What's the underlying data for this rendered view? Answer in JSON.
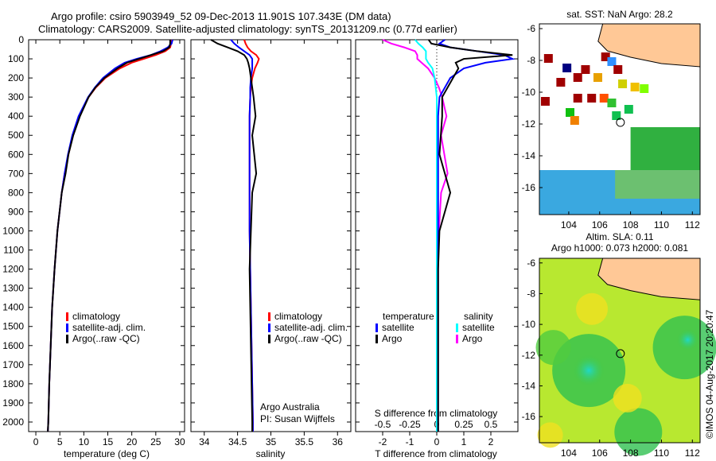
{
  "title_line1": "Argo profile: csiro 5903949_52 09-Dec-2013 11.901S 107.343E (DM data)",
  "title_line2": "Climatology: CARS2009. Satellite-adjusted climatology: synTS_20131209.nc (0.77d earlier)",
  "credits": {
    "org": "Argo Australia",
    "pi": "PI: Susan Wijffels",
    "stamp": "©IMOS 04-Aug-2017 20:20:47"
  },
  "colors": {
    "clim": "#ff0000",
    "sat": "#0000ff",
    "argo": "#000000",
    "s_sat": "#00ffff",
    "s_argo": "#ff00ff",
    "land": "#ffc896"
  },
  "chart_data": [
    {
      "type": "line",
      "name": "temperature",
      "xlabel": "temperature (deg C)",
      "xlim": [
        -1.5,
        31
      ],
      "xticks": [
        "0",
        "5",
        "10",
        "15",
        "20",
        "25",
        "30"
      ],
      "xtickvals": [
        0,
        5,
        10,
        15,
        20,
        25,
        30
      ],
      "ylim": [
        0,
        2050
      ],
      "yticks": [
        "0",
        "100",
        "200",
        "300",
        "400",
        "500",
        "600",
        "700",
        "800",
        "900",
        "1000",
        "1100",
        "1200",
        "1300",
        "1400",
        "1500",
        "1600",
        "1700",
        "1800",
        "1900",
        "2000"
      ],
      "pressure": [
        0,
        20,
        40,
        60,
        80,
        100,
        120,
        150,
        200,
        250,
        300,
        400,
        500,
        600,
        700,
        800,
        1000,
        1200,
        1400,
        1600,
        1800,
        2000,
        2050
      ],
      "legend": [
        "climatology",
        "satellite-adj. clim.",
        "Argo(..raw -QC)"
      ],
      "series": [
        {
          "name": "climatology",
          "values": [
            28.2,
            28.2,
            28,
            27,
            25,
            22.5,
            20,
            17.5,
            14.5,
            12.5,
            11,
            9,
            7.7,
            6.8,
            6,
            5.4,
            4.5,
            3.9,
            3.4,
            3.1,
            2.8,
            2.6,
            2.5
          ]
        },
        {
          "name": "satellite-adj. clim.",
          "values": [
            28.5,
            28.3,
            27.5,
            26,
            24,
            21,
            18.5,
            16.5,
            14,
            12.3,
            10.9,
            8.9,
            7.6,
            6.7,
            6,
            5.4,
            4.5,
            3.9,
            3.4,
            3.1,
            2.8,
            2.6,
            2.5
          ]
        },
        {
          "name": "Argo(..raw -QC)",
          "values": [
            28,
            28,
            27.8,
            26.5,
            24,
            21.5,
            19,
            17,
            14.3,
            12.4,
            11,
            9.2,
            7.8,
            6.8,
            6.2,
            5.4,
            4.5,
            3.9,
            3.4,
            3.1,
            2.8,
            2.6,
            2.5
          ]
        }
      ]
    },
    {
      "type": "line",
      "name": "salinity",
      "xlabel": "salinity",
      "xlim": [
        33.8,
        36.2
      ],
      "xticks": [
        "34",
        "34.5",
        "35",
        "35.5",
        "36"
      ],
      "xtickvals": [
        34,
        34.5,
        35,
        35.5,
        36
      ],
      "legend": [
        "climatology",
        "satellite-adj. clim.",
        "Argo(..raw -QC)"
      ],
      "series": [
        {
          "name": "climatology",
          "values": [
            34.6,
            34.62,
            34.65,
            34.7,
            34.78,
            34.82,
            34.8,
            34.76,
            34.72,
            34.7,
            34.69,
            34.68,
            34.68,
            34.68,
            34.68,
            34.68,
            34.68,
            34.69,
            34.7,
            34.71,
            34.72,
            34.73,
            34.73
          ]
        },
        {
          "name": "satellite-adj. clim.",
          "values": [
            34.4,
            34.45,
            34.52,
            34.6,
            34.68,
            34.72,
            34.72,
            34.72,
            34.7,
            34.69,
            34.69,
            34.68,
            34.68,
            34.68,
            34.68,
            34.68,
            34.68,
            34.69,
            34.7,
            34.71,
            34.72,
            34.73,
            34.73
          ]
        },
        {
          "name": "Argo(..raw -QC)",
          "values": [
            34.1,
            34.2,
            34.35,
            34.5,
            34.6,
            34.64,
            34.66,
            34.68,
            34.7,
            34.72,
            34.74,
            34.77,
            34.72,
            34.75,
            34.78,
            34.72,
            34.7,
            34.68,
            34.69,
            34.7,
            34.71,
            34.72,
            34.72
          ]
        }
      ]
    },
    {
      "type": "line",
      "name": "differences",
      "xlabel": "T difference from climatology",
      "x2label": "S difference from climatology",
      "xlim": [
        -3,
        3
      ],
      "xticks": [
        "-2",
        "-1",
        "0",
        "1",
        "2"
      ],
      "xtickvals": [
        -2,
        -1,
        0,
        1,
        2
      ],
      "x2lim": [
        -0.75,
        0.75
      ],
      "x2ticks": [
        "-0.5",
        "-0.25",
        "0",
        "0.25",
        "0.5"
      ],
      "x2tickvals": [
        -0.5,
        -0.25,
        0,
        0.25,
        0.5
      ],
      "legend": {
        "t_head": "temperature",
        "s_head": "salinity",
        "items": [
          "satellite",
          "Argo",
          "satellite",
          "Argo"
        ]
      },
      "series": [
        {
          "name": "T satellite",
          "axis": "T",
          "values": [
            0.3,
            0.1,
            0.5,
            1.5,
            2.5,
            2.8,
            1.8,
            1.0,
            0.5,
            0.3,
            0.1,
            0.05,
            0.05,
            0.05,
            0.05,
            0.05,
            0.05,
            0.05,
            0.05,
            0.05,
            0.05,
            0.05,
            0.05
          ]
        },
        {
          "name": "T Argo",
          "axis": "T",
          "values": [
            -0.3,
            -0.2,
            0.5,
            1.5,
            2.8,
            1.0,
            0.7,
            0.8,
            0.6,
            0.4,
            0.2,
            0.2,
            0.15,
            0.1,
            0.3,
            0.5,
            0.1,
            0.05,
            0.05,
            0.05,
            0.05,
            0.05,
            0.05
          ]
        },
        {
          "name": "S satellite",
          "axis": "S",
          "values": [
            -0.2,
            -0.17,
            -0.13,
            -0.1,
            -0.1,
            -0.1,
            -0.08,
            -0.04,
            -0.02,
            -0.01,
            0,
            0,
            0,
            0,
            0,
            0,
            0,
            0,
            0,
            0,
            0,
            0,
            0
          ]
        },
        {
          "name": "S Argo",
          "axis": "S",
          "values": [
            -0.5,
            -0.42,
            -0.3,
            -0.2,
            -0.18,
            -0.18,
            -0.14,
            -0.08,
            -0.02,
            0.02,
            0.05,
            0.09,
            0.04,
            0.07,
            0.1,
            0.04,
            0.02,
            0,
            0,
            0,
            0,
            0,
            0
          ]
        }
      ]
    },
    {
      "type": "heatmap",
      "name": "sst-map",
      "title": "sat. SST: NaN Argo: 28.2",
      "xticks": [
        "104",
        "106",
        "108",
        "110",
        "112"
      ],
      "yticks": [
        "-6",
        "-8",
        "-10",
        "-12",
        "-14",
        "-16"
      ],
      "argo_position": [
        107.343,
        -11.901
      ]
    },
    {
      "type": "heatmap",
      "name": "sla-map",
      "title1": "Altim. SLA: 0.11",
      "title2": "Argo h1000: 0.073 h2000: 0.081",
      "xticks": [
        "104",
        "106",
        "108",
        "110",
        "112"
      ],
      "yticks": [
        "-6",
        "-8",
        "-10",
        "-12",
        "-14",
        "-16"
      ],
      "argo_position": [
        107.343,
        -11.901
      ]
    }
  ]
}
